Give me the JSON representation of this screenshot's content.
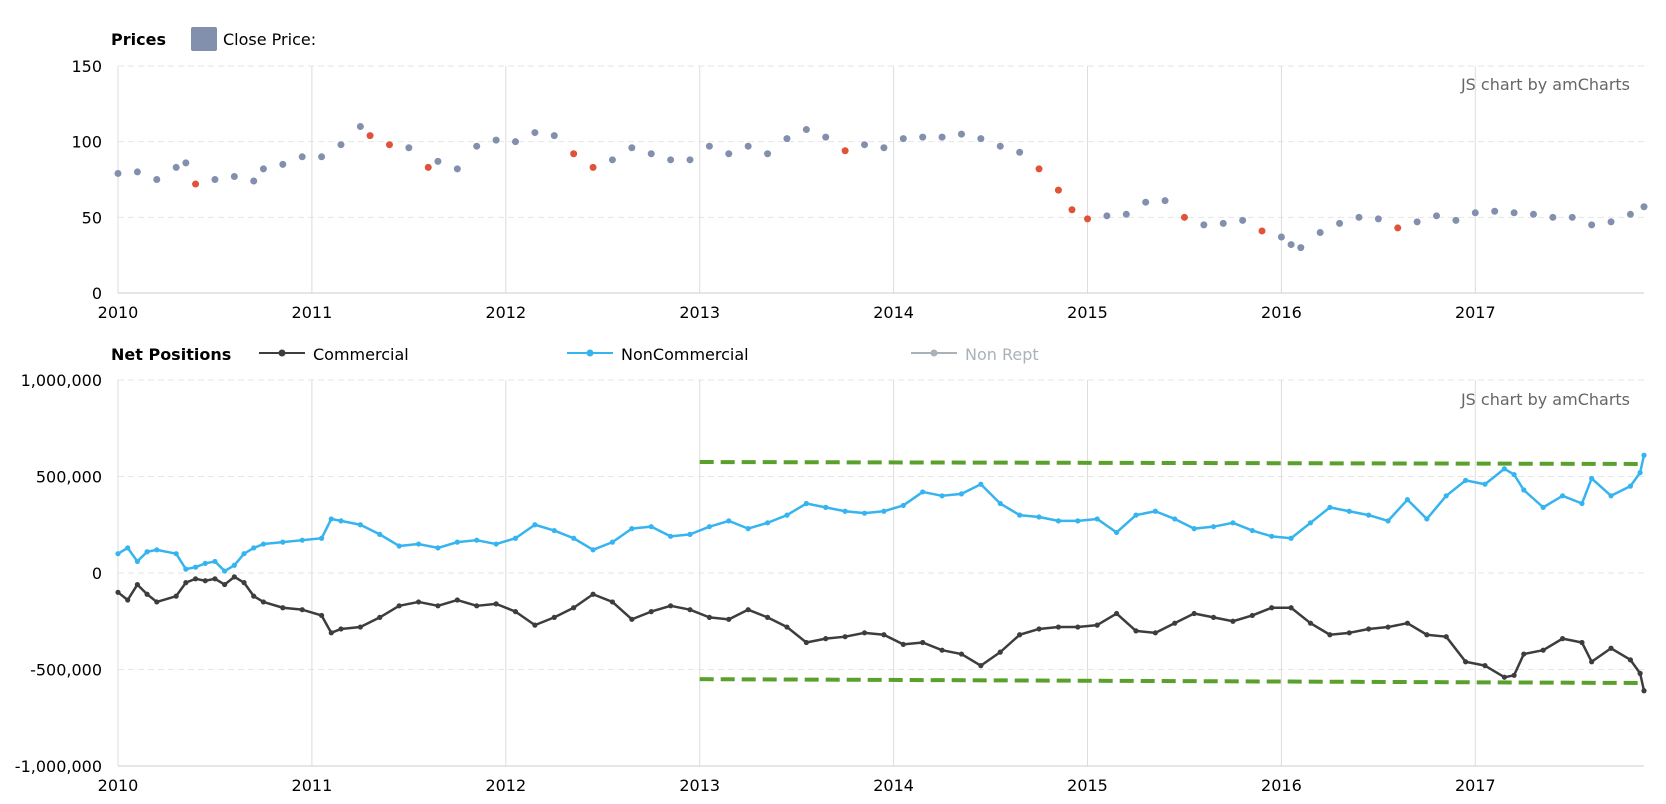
{
  "chart_data": [
    {
      "type": "scatter",
      "title": "Prices",
      "legend": [
        {
          "name": "Close Price:",
          "color": "#8390ad"
        }
      ],
      "credit": "JS chart by amCharts",
      "x_ticks": [
        "2010",
        "2011",
        "2012",
        "2013",
        "2014",
        "2015",
        "2016",
        "2017"
      ],
      "y_ticks": [
        "0",
        "50",
        "100",
        "150"
      ],
      "xlim": [
        2010.0,
        2017.87
      ],
      "ylim": [
        0,
        150
      ],
      "grid": true,
      "series": [
        {
          "name": "Close Price:",
          "color": "#8390ad",
          "down_color": "#e0533b",
          "x": [
            2010.0,
            2010.1,
            2010.2,
            2010.3,
            2010.35,
            2010.4,
            2010.5,
            2010.6,
            2010.7,
            2010.75,
            2010.85,
            2010.95,
            2011.05,
            2011.15,
            2011.25,
            2011.3,
            2011.4,
            2011.5,
            2011.6,
            2011.65,
            2011.75,
            2011.85,
            2011.95,
            2012.05,
            2012.15,
            2012.25,
            2012.35,
            2012.45,
            2012.55,
            2012.65,
            2012.75,
            2012.85,
            2012.95,
            2013.05,
            2013.15,
            2013.25,
            2013.35,
            2013.45,
            2013.55,
            2013.65,
            2013.75,
            2013.85,
            2013.95,
            2014.05,
            2014.15,
            2014.25,
            2014.35,
            2014.45,
            2014.55,
            2014.65,
            2014.75,
            2014.85,
            2014.92,
            2015.0,
            2015.1,
            2015.2,
            2015.3,
            2015.4,
            2015.5,
            2015.6,
            2015.7,
            2015.8,
            2015.9,
            2016.0,
            2016.05,
            2016.1,
            2016.2,
            2016.3,
            2016.4,
            2016.5,
            2016.6,
            2016.7,
            2016.8,
            2016.9,
            2017.0,
            2017.1,
            2017.2,
            2017.3,
            2017.4,
            2017.5,
            2017.6,
            2017.7,
            2017.8,
            2017.87
          ],
          "y": [
            79,
            80,
            75,
            83,
            86,
            72,
            75,
            77,
            74,
            82,
            85,
            90,
            90,
            98,
            110,
            104,
            98,
            96,
            83,
            87,
            82,
            97,
            101,
            100,
            106,
            104,
            92,
            83,
            88,
            96,
            92,
            88,
            88,
            97,
            92,
            97,
            92,
            102,
            108,
            103,
            94,
            98,
            96,
            102,
            103,
            103,
            105,
            102,
            97,
            93,
            82,
            68,
            55,
            49,
            51,
            52,
            60,
            61,
            50,
            45,
            46,
            48,
            41,
            37,
            32,
            30,
            40,
            46,
            50,
            49,
            43,
            47,
            51,
            48,
            53,
            54,
            53,
            52,
            50,
            50,
            45,
            47,
            52,
            57
          ]
        }
      ]
    },
    {
      "type": "line",
      "title": "Net Positions",
      "legend": [
        {
          "name": "Commercial",
          "color": "#3d3d3d"
        },
        {
          "name": "NonCommercial",
          "color": "#36b4ef"
        },
        {
          "name": "Non Rept",
          "color": "#aab2b7",
          "hidden": true
        }
      ],
      "credit": "JS chart by amCharts",
      "x_ticks": [
        "2010",
        "2011",
        "2012",
        "2013",
        "2014",
        "2015",
        "2016",
        "2017"
      ],
      "y_ticks": [
        "-1,000,000",
        "-500,000",
        "0",
        "500,000",
        "1,000,000"
      ],
      "xlim": [
        2010.0,
        2017.87
      ],
      "ylim": [
        -1000000,
        1000000
      ],
      "grid": true,
      "series": [
        {
          "name": "Commercial",
          "color": "#3d3d3d",
          "x": [
            2010.0,
            2010.05,
            2010.1,
            2010.15,
            2010.2,
            2010.3,
            2010.35,
            2010.4,
            2010.45,
            2010.5,
            2010.55,
            2010.6,
            2010.65,
            2010.7,
            2010.75,
            2010.85,
            2010.95,
            2011.05,
            2011.1,
            2011.15,
            2011.25,
            2011.35,
            2011.45,
            2011.55,
            2011.65,
            2011.75,
            2011.85,
            2011.95,
            2012.05,
            2012.15,
            2012.25,
            2012.35,
            2012.45,
            2012.55,
            2012.65,
            2012.75,
            2012.85,
            2012.95,
            2013.05,
            2013.15,
            2013.25,
            2013.35,
            2013.45,
            2013.55,
            2013.65,
            2013.75,
            2013.85,
            2013.95,
            2014.05,
            2014.15,
            2014.25,
            2014.35,
            2014.45,
            2014.55,
            2014.65,
            2014.75,
            2014.85,
            2014.95,
            2015.05,
            2015.15,
            2015.25,
            2015.35,
            2015.45,
            2015.55,
            2015.65,
            2015.75,
            2015.85,
            2015.95,
            2016.05,
            2016.15,
            2016.25,
            2016.35,
            2016.45,
            2016.55,
            2016.65,
            2016.75,
            2016.85,
            2016.95,
            2017.05,
            2017.15,
            2017.2,
            2017.25,
            2017.35,
            2017.45,
            2017.55,
            2017.6,
            2017.7,
            2017.8,
            2017.85,
            2017.87
          ],
          "y": [
            -100000,
            -140000,
            -60000,
            -110000,
            -150000,
            -120000,
            -50000,
            -30000,
            -40000,
            -30000,
            -60000,
            -20000,
            -50000,
            -120000,
            -150000,
            -180000,
            -190000,
            -220000,
            -310000,
            -290000,
            -280000,
            -230000,
            -170000,
            -150000,
            -170000,
            -140000,
            -170000,
            -160000,
            -200000,
            -270000,
            -230000,
            -180000,
            -110000,
            -150000,
            -240000,
            -200000,
            -170000,
            -190000,
            -230000,
            -240000,
            -190000,
            -230000,
            -280000,
            -360000,
            -340000,
            -330000,
            -310000,
            -320000,
            -370000,
            -360000,
            -400000,
            -420000,
            -480000,
            -410000,
            -320000,
            -290000,
            -280000,
            -280000,
            -270000,
            -210000,
            -300000,
            -310000,
            -260000,
            -210000,
            -230000,
            -250000,
            -220000,
            -180000,
            -180000,
            -260000,
            -320000,
            -310000,
            -290000,
            -280000,
            -260000,
            -320000,
            -330000,
            -460000,
            -480000,
            -540000,
            -530000,
            -420000,
            -400000,
            -340000,
            -360000,
            -460000,
            -390000,
            -450000,
            -520000,
            -610000
          ]
        },
        {
          "name": "NonCommercial",
          "color": "#36b4ef",
          "x": [
            2010.0,
            2010.05,
            2010.1,
            2010.15,
            2010.2,
            2010.3,
            2010.35,
            2010.4,
            2010.45,
            2010.5,
            2010.55,
            2010.6,
            2010.65,
            2010.7,
            2010.75,
            2010.85,
            2010.95,
            2011.05,
            2011.1,
            2011.15,
            2011.25,
            2011.35,
            2011.45,
            2011.55,
            2011.65,
            2011.75,
            2011.85,
            2011.95,
            2012.05,
            2012.15,
            2012.25,
            2012.35,
            2012.45,
            2012.55,
            2012.65,
            2012.75,
            2012.85,
            2012.95,
            2013.05,
            2013.15,
            2013.25,
            2013.35,
            2013.45,
            2013.55,
            2013.65,
            2013.75,
            2013.85,
            2013.95,
            2014.05,
            2014.15,
            2014.25,
            2014.35,
            2014.45,
            2014.55,
            2014.65,
            2014.75,
            2014.85,
            2014.95,
            2015.05,
            2015.15,
            2015.25,
            2015.35,
            2015.45,
            2015.55,
            2015.65,
            2015.75,
            2015.85,
            2015.95,
            2016.05,
            2016.15,
            2016.25,
            2016.35,
            2016.45,
            2016.55,
            2016.65,
            2016.75,
            2016.85,
            2016.95,
            2017.05,
            2017.15,
            2017.2,
            2017.25,
            2017.35,
            2017.45,
            2017.55,
            2017.6,
            2017.7,
            2017.8,
            2017.85,
            2017.87
          ],
          "y": [
            100000,
            130000,
            60000,
            110000,
            120000,
            100000,
            20000,
            30000,
            50000,
            60000,
            10000,
            40000,
            100000,
            130000,
            150000,
            160000,
            170000,
            180000,
            280000,
            270000,
            250000,
            200000,
            140000,
            150000,
            130000,
            160000,
            170000,
            150000,
            180000,
            250000,
            220000,
            180000,
            120000,
            160000,
            230000,
            240000,
            190000,
            200000,
            240000,
            270000,
            230000,
            260000,
            300000,
            360000,
            340000,
            320000,
            310000,
            320000,
            350000,
            420000,
            400000,
            410000,
            460000,
            360000,
            300000,
            290000,
            270000,
            270000,
            280000,
            210000,
            300000,
            320000,
            280000,
            230000,
            240000,
            260000,
            220000,
            190000,
            180000,
            260000,
            340000,
            320000,
            300000,
            270000,
            380000,
            280000,
            400000,
            480000,
            460000,
            540000,
            510000,
            430000,
            340000,
            400000,
            360000,
            490000,
            400000,
            450000,
            520000,
            610000
          ]
        }
      ],
      "trendlines": [
        {
          "color": "#5aa02c",
          "x": [
            2013.0,
            2017.87
          ],
          "y": [
            575000,
            565000
          ]
        },
        {
          "color": "#5aa02c",
          "x": [
            2013.0,
            2017.87
          ],
          "y": [
            -550000,
            -570000
          ]
        }
      ]
    }
  ]
}
